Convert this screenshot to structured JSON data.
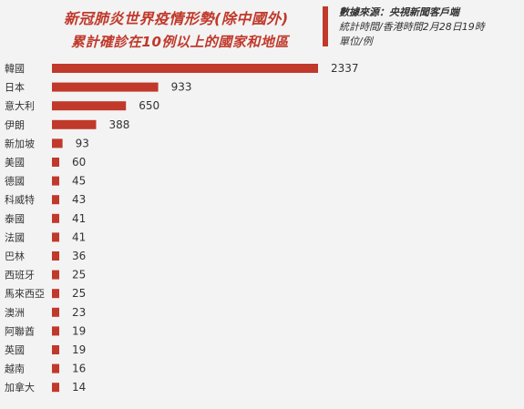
{
  "header": {
    "title": "新冠肺炎世界疫情形勢(除中國外)",
    "subtitle": "累計確診在10例以上的國家和地區",
    "source_line1": "數據來源：央視新聞客戶端",
    "source_line2": "統計時間/香港時間2月28日19時",
    "source_line3": "單位/例"
  },
  "colors": {
    "bar": "#c0392b",
    "title": "#c0392b",
    "background": "#f3f3f3"
  },
  "chart_data": {
    "type": "bar",
    "orientation": "horizontal",
    "title": "新冠肺炎世界疫情形勢(除中國外)",
    "subtitle": "累計確診在10例以上的國家和地區",
    "unit": "單位/例",
    "categories": [
      "韓國",
      "日本",
      "意大利",
      "伊朗",
      "新加坡",
      "美國",
      "德國",
      "科威特",
      "泰國",
      "法國",
      "巴林",
      "西班牙",
      "馬來西亞",
      "澳洲",
      "阿聯酋",
      "英國",
      "越南",
      "加拿大"
    ],
    "values": [
      2337,
      933,
      650,
      388,
      93,
      60,
      45,
      43,
      41,
      41,
      36,
      25,
      25,
      23,
      19,
      19,
      16,
      14
    ],
    "grid": false,
    "legend": "none"
  }
}
